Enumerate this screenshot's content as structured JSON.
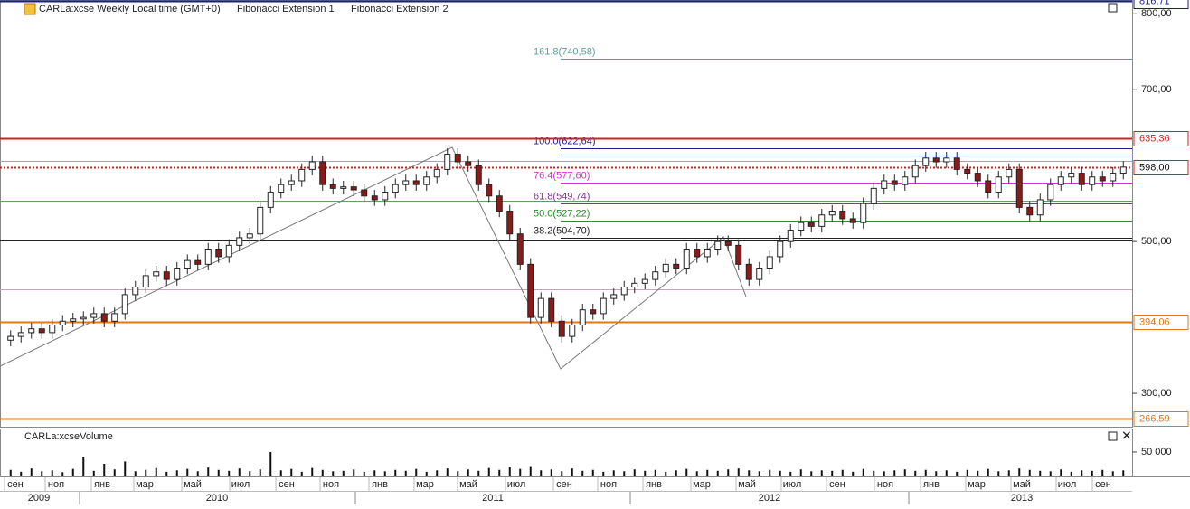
{
  "header": {
    "symbol": "CARLa:xcse Weekly Local time (GMT+0)",
    "tools": [
      "Fibonacci Extension 1",
      "Fibonacci Extension 2"
    ]
  },
  "chart_data": [
    {
      "type": "candlestick",
      "ylim": [
        256,
        817
      ],
      "yticks": [
        {
          "value": 800,
          "label": "800,00"
        },
        {
          "value": 700,
          "label": "700,00"
        },
        {
          "value": 500,
          "label": "500,00"
        },
        {
          "value": 300,
          "label": "300,00"
        }
      ],
      "up_color": "#ffffff",
      "down_color": "#8b1a1a",
      "open": [
        370,
        375,
        380,
        385,
        380,
        390,
        395,
        398,
        400,
        405,
        395,
        405,
        430,
        440,
        455,
        460,
        450,
        465,
        475,
        470,
        490,
        480,
        495,
        505,
        510,
        545,
        565,
        575,
        580,
        595,
        605,
        575,
        570,
        572,
        568,
        560,
        555,
        565,
        575,
        580,
        575,
        585,
        595,
        615,
        605,
        600,
        575,
        560,
        540,
        510,
        470,
        400,
        425,
        395,
        375,
        390,
        410,
        405,
        425,
        430,
        440,
        445,
        450,
        460,
        470,
        465,
        490,
        480,
        490,
        500,
        495,
        470,
        450,
        465,
        480,
        500,
        515,
        525,
        520,
        535,
        540,
        530,
        525,
        550,
        570,
        580,
        575,
        585,
        600,
        610,
        605,
        610,
        595,
        590,
        580,
        565,
        585,
        595,
        545,
        535,
        555,
        575,
        585,
        590,
        575,
        585,
        580,
        590
      ],
      "high": [
        383,
        388,
        393,
        393,
        398,
        403,
        406,
        408,
        413,
        413,
        413,
        438,
        448,
        463,
        468,
        468,
        473,
        483,
        483,
        498,
        498,
        503,
        513,
        518,
        553,
        573,
        583,
        588,
        603,
        613,
        613,
        583,
        580,
        580,
        576,
        568,
        573,
        583,
        588,
        588,
        593,
        603,
        623,
        623,
        613,
        608,
        583,
        568,
        548,
        518,
        478,
        433,
        433,
        403,
        398,
        418,
        418,
        433,
        438,
        448,
        453,
        458,
        468,
        478,
        478,
        498,
        498,
        498,
        508,
        508,
        503,
        478,
        473,
        488,
        508,
        523,
        533,
        533,
        543,
        548,
        548,
        538,
        558,
        578,
        588,
        588,
        593,
        608,
        618,
        618,
        618,
        618,
        603,
        598,
        588,
        593,
        603,
        603,
        553,
        563,
        583,
        593,
        598,
        598,
        593,
        593,
        598,
        606
      ],
      "low": [
        362,
        367,
        372,
        372,
        372,
        382,
        387,
        390,
        392,
        387,
        387,
        397,
        422,
        432,
        447,
        442,
        442,
        457,
        462,
        462,
        472,
        472,
        487,
        497,
        502,
        537,
        557,
        567,
        572,
        587,
        567,
        562,
        562,
        560,
        552,
        547,
        547,
        557,
        567,
        567,
        567,
        577,
        587,
        597,
        592,
        567,
        552,
        532,
        502,
        462,
        392,
        392,
        387,
        367,
        367,
        382,
        397,
        397,
        417,
        422,
        432,
        437,
        442,
        452,
        457,
        457,
        472,
        472,
        482,
        487,
        462,
        442,
        442,
        457,
        472,
        492,
        507,
        512,
        512,
        527,
        522,
        517,
        517,
        542,
        562,
        567,
        567,
        577,
        592,
        597,
        597,
        587,
        582,
        572,
        557,
        557,
        577,
        537,
        527,
        527,
        547,
        567,
        577,
        567,
        567,
        572,
        572,
        582
      ],
      "close": [
        375,
        380,
        385,
        380,
        390,
        395,
        398,
        400,
        405,
        395,
        405,
        430,
        440,
        455,
        460,
        450,
        465,
        475,
        470,
        490,
        480,
        495,
        505,
        510,
        545,
        565,
        575,
        580,
        595,
        605,
        575,
        570,
        572,
        568,
        560,
        555,
        565,
        575,
        580,
        575,
        585,
        595,
        615,
        605,
        600,
        575,
        560,
        540,
        510,
        470,
        400,
        425,
        395,
        375,
        390,
        410,
        405,
        425,
        430,
        440,
        445,
        450,
        460,
        470,
        465,
        490,
        480,
        490,
        500,
        495,
        470,
        450,
        465,
        480,
        500,
        515,
        525,
        520,
        535,
        540,
        530,
        525,
        550,
        570,
        580,
        575,
        585,
        600,
        610,
        605,
        610,
        595,
        590,
        580,
        565,
        585,
        595,
        545,
        535,
        555,
        575,
        585,
        590,
        575,
        585,
        580,
        590,
        598
      ],
      "levels": [
        {
          "value": 816.71,
          "label": "816,71",
          "color": "#1c1c8c"
        },
        {
          "value": 635.36,
          "label": "635,36",
          "color": "#d42020"
        },
        {
          "value": 598,
          "label": "598,00",
          "color": "#d42020"
        },
        {
          "value": 394.06,
          "label": "394,06",
          "color": "#e07818"
        },
        {
          "value": 266.59,
          "label": "266,59",
          "color": "#e07818"
        }
      ],
      "fib_levels": [
        {
          "value": 740.58,
          "label": "161.8(740,58)",
          "color": "#5f9ea0"
        },
        {
          "value": 622.64,
          "label": "100.0(622,64)",
          "color": "#1c1c8c"
        },
        {
          "value": 577.6,
          "label": "76.4(577,60)",
          "color": "#d030d0"
        },
        {
          "value": 549.74,
          "label": "61.8(549,74)",
          "color": "#7a3a8a"
        },
        {
          "value": 527.22,
          "label": "50.0(527,22)",
          "color": "#2a8a2a"
        },
        {
          "value": 504.7,
          "label": "38.2(504,70)",
          "color": "#222222"
        }
      ]
    },
    {
      "type": "bar",
      "title": "CARLa:xcseVolume",
      "color": "#111111",
      "ylim": [
        0,
        96000
      ],
      "yticks": [
        {
          "value": 50000,
          "label": "50 000"
        }
      ],
      "values": [
        12000,
        8000,
        15000,
        9000,
        11000,
        7000,
        14000,
        40000,
        10000,
        25000,
        13000,
        30000,
        9000,
        12000,
        16000,
        8000,
        11000,
        14000,
        9000,
        17000,
        12000,
        10000,
        15000,
        9000,
        13000,
        50000,
        11000,
        14000,
        8000,
        16000,
        12000,
        9000,
        10000,
        13000,
        8000,
        11000,
        9000,
        12000,
        10000,
        14000,
        8000,
        11000,
        15000,
        9000,
        13000,
        10000,
        16000,
        12000,
        18000,
        14000,
        20000,
        11000,
        13000,
        9000,
        15000,
        10000,
        12000,
        8000,
        11000,
        9000,
        13000,
        10000,
        12000,
        8000,
        11000,
        14000,
        9000,
        12000,
        10000,
        13000,
        15000,
        11000,
        9000,
        12000,
        10000,
        8000,
        13000,
        9000,
        11000,
        10000,
        12000,
        8000,
        14000,
        10000,
        9000,
        11000,
        13000,
        10000,
        12000,
        9000,
        11000,
        8000,
        12000,
        10000,
        14000,
        9000,
        11000,
        15000,
        12000,
        10000,
        9000,
        13000,
        8000,
        11000,
        10000,
        12000,
        9000,
        11000
      ]
    }
  ],
  "time_axis": {
    "months": [
      "сен",
      "ноя",
      "янв",
      "мар",
      "май",
      "июл",
      "сен",
      "ноя",
      "янв",
      "мар",
      "май",
      "июл",
      "сен",
      "ноя",
      "янв",
      "мар",
      "май",
      "июл",
      "сен",
      "ноя",
      "янв",
      "мар",
      "май",
      "июл",
      "сен"
    ],
    "years": [
      "2009",
      "2010",
      "2011",
      "2012",
      "2013"
    ]
  }
}
